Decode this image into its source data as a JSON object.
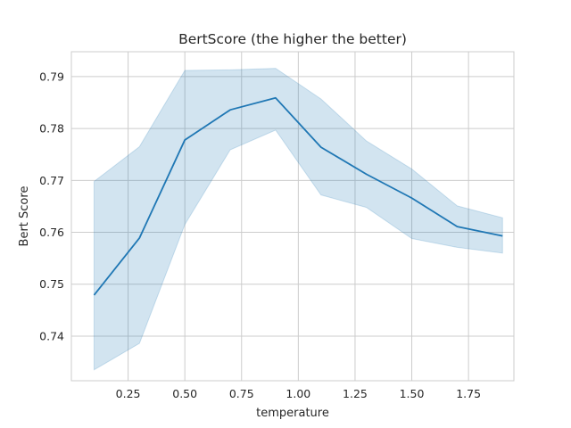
{
  "chart_data": {
    "type": "line",
    "title": "BertScore (the higher the better)",
    "xlabel": "temperature",
    "ylabel": "Bert Score",
    "xlim": [
      0.0,
      1.95
    ],
    "ylim": [
      0.7314,
      0.7948
    ],
    "xticks": [
      0.25,
      0.5,
      0.75,
      1.0,
      1.25,
      1.5,
      1.75
    ],
    "xtick_labels": [
      "0.25",
      "0.50",
      "0.75",
      "1.00",
      "1.25",
      "1.50",
      "1.75"
    ],
    "yticks": [
      0.74,
      0.75,
      0.76,
      0.77,
      0.78,
      0.79
    ],
    "ytick_labels": [
      "0.74",
      "0.75",
      "0.76",
      "0.77",
      "0.78",
      "0.79"
    ],
    "grid": true,
    "x": [
      0.1,
      0.3,
      0.5,
      0.7,
      0.9,
      1.1,
      1.3,
      1.5,
      1.7,
      1.9
    ],
    "series": [
      {
        "values": [
          0.7479,
          0.7589,
          0.7778,
          0.7836,
          0.7859,
          0.7764,
          0.7712,
          0.7666,
          0.7611,
          0.7593
        ],
        "ci_lower": [
          0.7335,
          0.7386,
          0.7615,
          0.7759,
          0.7797,
          0.7672,
          0.7648,
          0.7588,
          0.7571,
          0.756
        ],
        "ci_upper": [
          0.7698,
          0.7765,
          0.7912,
          0.7913,
          0.7916,
          0.7857,
          0.7776,
          0.7722,
          0.7651,
          0.7628
        ],
        "color": "#1f77b4",
        "band_color": "#1f77b4"
      }
    ]
  }
}
